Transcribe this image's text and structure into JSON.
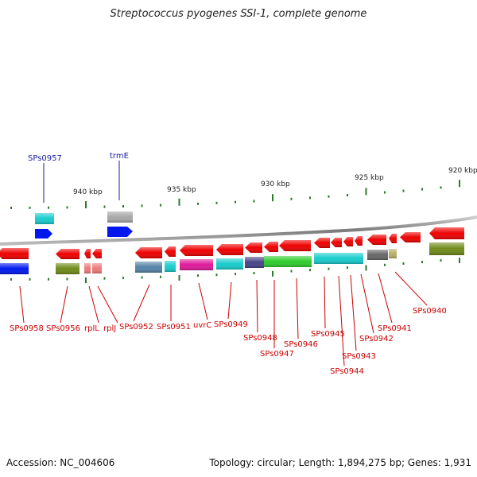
{
  "title": "Streptococcus pyogenes SSI-1, complete genome",
  "footer": {
    "accession": "Accession: NC_004606",
    "topology": "Topology: circular; Length: 1,894,275 bp; Genes: 1,931"
  },
  "scale": {
    "labels": [
      {
        "text": "940 kbp"
      },
      {
        "text": "935 kbp"
      },
      {
        "text": "930 kbp"
      },
      {
        "text": "925 kbp"
      },
      {
        "text": "920 kbp"
      }
    ]
  },
  "top_labels": [
    {
      "text": "SPs0957"
    },
    {
      "text": "trmE"
    }
  ],
  "bottom_labels": [
    {
      "text": "SPs0958"
    },
    {
      "text": "SPs0956"
    },
    {
      "text": "rplL"
    },
    {
      "text": "rplJ"
    },
    {
      "text": "SPs0952"
    },
    {
      "text": "SPs0951"
    },
    {
      "text": "uvrC"
    },
    {
      "text": "SPs0949"
    },
    {
      "text": "SPs0948"
    },
    {
      "text": "SPs0947"
    },
    {
      "text": "SPs0946"
    },
    {
      "text": "SPs0945"
    },
    {
      "text": "SPs0944"
    },
    {
      "text": "SPs0943"
    },
    {
      "text": "SPs0942"
    },
    {
      "text": "SPs0941"
    },
    {
      "text": "SPs0940"
    }
  ],
  "colors": {
    "gene": "#ee0000",
    "cog_blue": "#0018ee",
    "cog_cyan": "#18cccc",
    "cog_olive": "#6f8a18",
    "cog_gray": "#a8a8a8",
    "cog_steel": "#5584a8",
    "cog_magenta": "#e0199a",
    "cog_navy": "#4a4488",
    "cog_green": "#2ecc2e",
    "cog_dkgray": "#666666",
    "cog_khaki": "#b8ae68",
    "cog_pink": "#ee7a7a",
    "label_top": "#1a1aa0",
    "label_bottom": "#cc0000",
    "tick": "#2b7a2b",
    "backbone": "#999999"
  }
}
